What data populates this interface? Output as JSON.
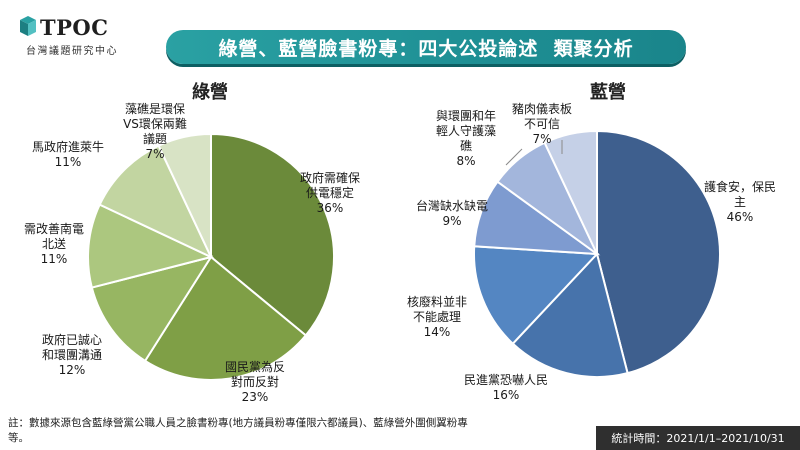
{
  "header": {
    "logo_text": "TPOC",
    "logo_subtitle": "台灣議題研究中心",
    "title": "綠營、藍營臉書粉專：四大公投論述  類聚分析"
  },
  "chart_data": [
    {
      "type": "pie",
      "title": "綠營",
      "slices": [
        {
          "label": "政府需確保供電穩定",
          "value": 36,
          "value_label": "36%",
          "color": "#6b8a3a"
        },
        {
          "label": "國民黨為反對而反對",
          "value": 23,
          "value_label": "23%",
          "color": "#7f9f46"
        },
        {
          "label": "政府已誠心和環團溝通",
          "value": 12,
          "value_label": "12%",
          "color": "#97b662"
        },
        {
          "label": "需改善南電北送",
          "value": 11,
          "value_label": "11%",
          "color": "#acc77f"
        },
        {
          "label": "馬政府進萊牛",
          "value": 11,
          "value_label": "11%",
          "color": "#c2d5a1"
        },
        {
          "label": "藻礁是環保VS環保兩難議題",
          "value": 7,
          "value_label": "7%",
          "color": "#d8e3c5"
        }
      ]
    },
    {
      "type": "pie",
      "title": "藍營",
      "slices": [
        {
          "label": "護食安，保民主",
          "value": 46,
          "value_label": "46%",
          "color": "#3e5f8e"
        },
        {
          "label": "民進黨恐嚇人民",
          "value": 16,
          "value_label": "16%",
          "color": "#4773ab"
        },
        {
          "label": "核廢料並非不能處理",
          "value": 14,
          "value_label": "14%",
          "color": "#5486c2"
        },
        {
          "label": "台灣缺水缺電",
          "value": 9,
          "value_label": "9%",
          "color": "#7e9bd0"
        },
        {
          "label": "與環團和年輕人守護藻礁",
          "value": 8,
          "value_label": "8%",
          "color": "#a3b6dc"
        },
        {
          "label": "豬肉儀表板不可信",
          "value": 7,
          "value_label": "7%",
          "color": "#c5d0e7"
        }
      ]
    }
  ],
  "footer": {
    "note": "註：數據來源包含藍綠營黨公職人員之臉書粉專(地方議員粉專僅限六都議員)、藍綠營外圍側翼粉專等。",
    "stats_period": "統計時間：2021/1/1–2021/10/31"
  }
}
